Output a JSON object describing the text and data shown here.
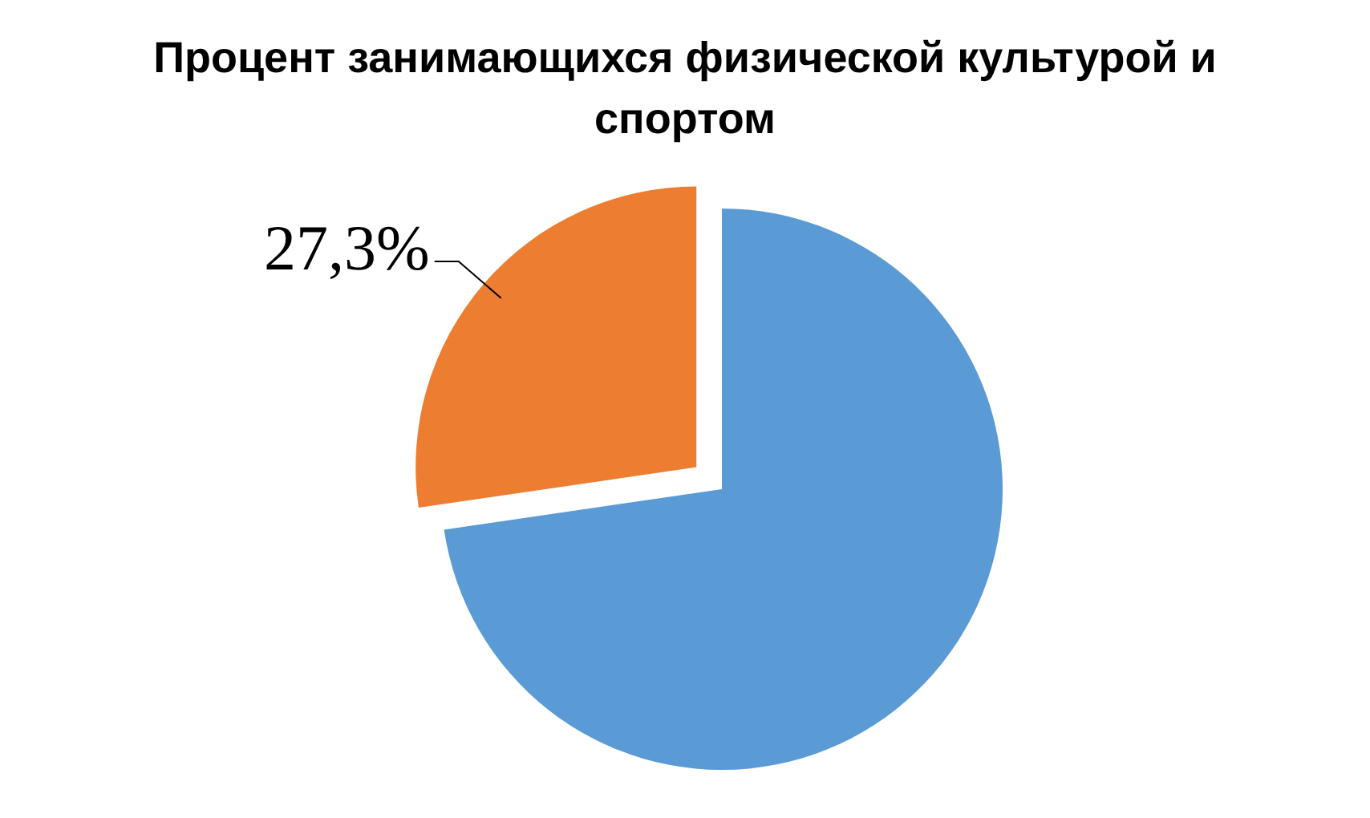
{
  "chart_data": {
    "type": "pie",
    "title": "Процент занимающихся физической культурой и спортом",
    "categories": [
      null,
      null
    ],
    "values": [
      72.7,
      27.3
    ],
    "colors": [
      "#5b9bd5",
      "#ed7d31"
    ],
    "value_labels": [
      null,
      "27,3%"
    ]
  }
}
